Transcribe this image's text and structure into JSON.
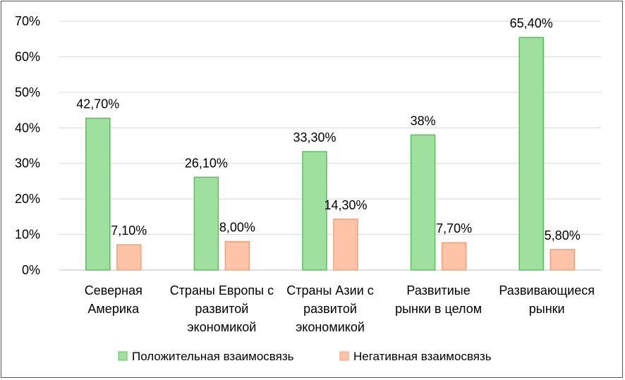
{
  "chart_data": {
    "type": "bar",
    "categories": [
      [
        "Северная",
        "Америка"
      ],
      [
        "Страны Европы с",
        "развитой",
        "экономикой"
      ],
      [
        "Страны Азии с",
        "развитой",
        "экономикой"
      ],
      [
        "Развитиые",
        "рынки в целом"
      ],
      [
        "Развивающиеся",
        "рынки"
      ]
    ],
    "series": [
      {
        "name": "Положительная взаимосвязь",
        "values": [
          42.7,
          26.1,
          33.3,
          38,
          65.4
        ],
        "labels": [
          "42,70%",
          "26,10%",
          "33,30%",
          "38%",
          "65,40%"
        ],
        "color": "#9fe09f",
        "stroke": "#59c159"
      },
      {
        "name": "Негативная взаимосвязь",
        "values": [
          7.1,
          8.0,
          14.3,
          7.7,
          5.8
        ],
        "labels": [
          "7,10%",
          "8,00%",
          "14,30%",
          "7,70%",
          "5,80%"
        ],
        "color": "#ffc4a8",
        "stroke": "#f59f7a"
      }
    ],
    "ylim": [
      0,
      70
    ],
    "yticks": [
      "0%",
      "10%",
      "20%",
      "30%",
      "40%",
      "50%",
      "60%",
      "70%"
    ],
    "grid": true,
    "legend": "bottom",
    "gridColor": "#d9d9d9"
  }
}
